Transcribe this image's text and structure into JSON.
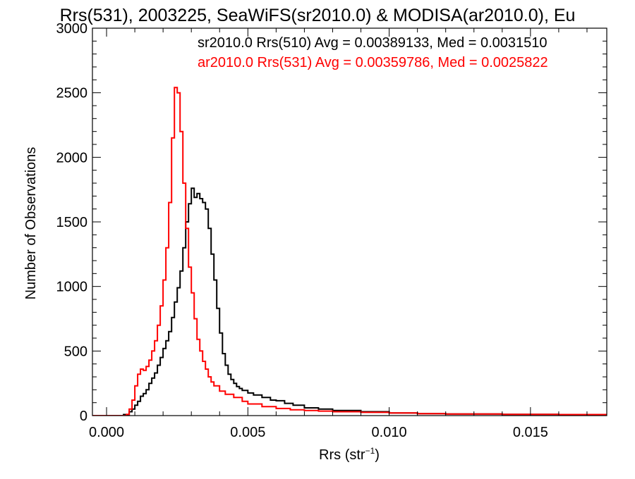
{
  "chart_data": {
    "type": "line",
    "title": "Rrs(531), 2003225, SeaWiFS(sr2010.0) & MODISA(ar2010.0), Eu",
    "xlabel": "Rrs (str",
    "xlabel_superscript": "−1",
    "xlabel_suffix": ")",
    "ylabel": "Number of Observations",
    "xlim": [
      -0.0005,
      0.0177
    ],
    "ylim": [
      0,
      3000
    ],
    "x_ticks": [
      0.0,
      0.005,
      0.01,
      0.015
    ],
    "x_tick_labels": [
      "0.000",
      "0.005",
      "0.010",
      "0.015"
    ],
    "y_ticks": [
      0,
      500,
      1000,
      1500,
      2000,
      2500,
      3000
    ],
    "y_tick_labels": [
      "0",
      "500",
      "1000",
      "1500",
      "2000",
      "2500",
      "3000"
    ],
    "grid": false,
    "legend_placement": "top-right",
    "series": [
      {
        "name": "sr2010.0 Rrs(510) Avg = 0.00389133, Med = 0.0031510",
        "color": "#000000",
        "points": [
          [
            -0.0005,
            0
          ],
          [
            0.0003,
            0
          ],
          [
            0.0006,
            8
          ],
          [
            0.0008,
            30
          ],
          [
            0.0009,
            50
          ],
          [
            0.001,
            80
          ],
          [
            0.0011,
            110
          ],
          [
            0.0012,
            150
          ],
          [
            0.0013,
            170
          ],
          [
            0.0014,
            200
          ],
          [
            0.0015,
            250
          ],
          [
            0.0016,
            290
          ],
          [
            0.0017,
            330
          ],
          [
            0.0018,
            390
          ],
          [
            0.0019,
            450
          ],
          [
            0.002,
            520
          ],
          [
            0.0021,
            580
          ],
          [
            0.0022,
            650
          ],
          [
            0.0023,
            760
          ],
          [
            0.0024,
            880
          ],
          [
            0.0025,
            990
          ],
          [
            0.0026,
            1120
          ],
          [
            0.0027,
            1300
          ],
          [
            0.0028,
            1500
          ],
          [
            0.0029,
            1640
          ],
          [
            0.003,
            1760
          ],
          [
            0.0031,
            1690
          ],
          [
            0.0032,
            1720
          ],
          [
            0.0033,
            1680
          ],
          [
            0.0034,
            1650
          ],
          [
            0.0035,
            1600
          ],
          [
            0.0036,
            1450
          ],
          [
            0.0037,
            1250
          ],
          [
            0.0038,
            1050
          ],
          [
            0.0039,
            830
          ],
          [
            0.004,
            640
          ],
          [
            0.0041,
            480
          ],
          [
            0.0042,
            390
          ],
          [
            0.0043,
            320
          ],
          [
            0.0044,
            280
          ],
          [
            0.0045,
            250
          ],
          [
            0.0046,
            225
          ],
          [
            0.0047,
            210
          ],
          [
            0.0048,
            195
          ],
          [
            0.005,
            175
          ],
          [
            0.0052,
            160
          ],
          [
            0.0055,
            140
          ],
          [
            0.0058,
            120
          ],
          [
            0.006,
            115
          ],
          [
            0.0063,
            95
          ],
          [
            0.0066,
            80
          ],
          [
            0.007,
            60
          ],
          [
            0.0075,
            50
          ],
          [
            0.008,
            40
          ],
          [
            0.009,
            30
          ],
          [
            0.01,
            20
          ],
          [
            0.011,
            15
          ],
          [
            0.012,
            12
          ],
          [
            0.014,
            10
          ],
          [
            0.016,
            8
          ],
          [
            0.0177,
            6
          ]
        ]
      },
      {
        "name": "ar2010.0 Rrs(531) Avg = 0.00359786, Med = 0.0025822",
        "color": "#ff0000",
        "points": [
          [
            -0.0005,
            0
          ],
          [
            0.0006,
            0
          ],
          [
            0.0007,
            10
          ],
          [
            0.0008,
            50
          ],
          [
            0.0009,
            120
          ],
          [
            0.001,
            230
          ],
          [
            0.0011,
            320
          ],
          [
            0.0012,
            360
          ],
          [
            0.0013,
            350
          ],
          [
            0.0014,
            380
          ],
          [
            0.0015,
            430
          ],
          [
            0.0016,
            500
          ],
          [
            0.0017,
            580
          ],
          [
            0.0018,
            700
          ],
          [
            0.0019,
            850
          ],
          [
            0.002,
            1050
          ],
          [
            0.0021,
            1300
          ],
          [
            0.0022,
            1650
          ],
          [
            0.0023,
            2150
          ],
          [
            0.0024,
            2540
          ],
          [
            0.0025,
            2500
          ],
          [
            0.0026,
            2200
          ],
          [
            0.0027,
            1800
          ],
          [
            0.0028,
            1450
          ],
          [
            0.0029,
            1150
          ],
          [
            0.003,
            950
          ],
          [
            0.0031,
            750
          ],
          [
            0.0032,
            590
          ],
          [
            0.0033,
            500
          ],
          [
            0.0034,
            420
          ],
          [
            0.0035,
            360
          ],
          [
            0.0036,
            300
          ],
          [
            0.0037,
            260
          ],
          [
            0.0038,
            230
          ],
          [
            0.004,
            190
          ],
          [
            0.0042,
            165
          ],
          [
            0.0045,
            140
          ],
          [
            0.0048,
            110
          ],
          [
            0.005,
            90
          ],
          [
            0.0055,
            70
          ],
          [
            0.006,
            55
          ],
          [
            0.0065,
            45
          ],
          [
            0.007,
            40
          ],
          [
            0.0075,
            35
          ],
          [
            0.008,
            30
          ],
          [
            0.009,
            25
          ],
          [
            0.01,
            20
          ],
          [
            0.011,
            15
          ],
          [
            0.012,
            12
          ],
          [
            0.014,
            10
          ],
          [
            0.016,
            8
          ],
          [
            0.0177,
            6
          ]
        ]
      }
    ]
  }
}
